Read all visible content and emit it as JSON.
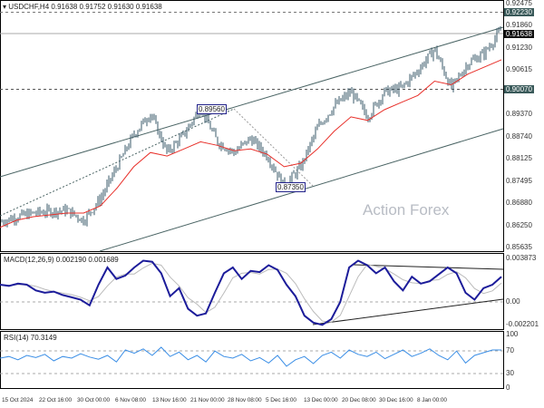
{
  "header": {
    "symbol": "USDCHF,H4",
    "ohlc": "0.91638 0.91752 0.91630 0.91638"
  },
  "price_axis": [
    "0.92475",
    "0.91860",
    "0.91230",
    "0.90615",
    "0.89370",
    "0.88740",
    "0.88125",
    "0.87495",
    "0.86880",
    "0.86250",
    "0.85635"
  ],
  "price_tags": {
    "resistance": "0.92230",
    "current": "0.91638",
    "support": "0.90070"
  },
  "annotations": {
    "high": "0.89560",
    "low": "0.87350",
    "watermark": "Action Forex"
  },
  "macd": {
    "label": "MACD(12,26,9) 0.002190 0.001689",
    "axis": [
      "0.003873",
      "0.00",
      "-0.002201"
    ]
  },
  "rsi": {
    "label": "RSI(14) 70.3149",
    "axis": [
      "100",
      "70",
      "30",
      "0"
    ]
  },
  "time_axis": [
    "15 Oct 2024",
    "22 Oct 16:00",
    "30 Oct 00:00",
    "6 Nov 08:00",
    "13 Nov 16:00",
    "21 Nov 00:00",
    "28 Nov 08:00",
    "5 Dec 16:00",
    "13 Dec 00:00",
    "20 Dec 08:00",
    "30 Dec 16:00",
    "8 Jan 00:00"
  ],
  "chart_data": {
    "type": "line",
    "price_range": [
      0.85635,
      0.92475
    ],
    "price_path": [
      0.8635,
      0.865,
      0.866,
      0.8665,
      0.8668,
      0.864,
      0.87,
      0.879,
      0.888,
      0.894,
      0.883,
      0.888,
      0.8956,
      0.886,
      0.883,
      0.887,
      0.882,
      0.8735,
      0.879,
      0.89,
      0.896,
      0.9,
      0.893,
      0.9,
      0.901,
      0.906,
      0.912,
      0.901,
      0.908,
      0.911,
      0.9175
    ],
    "ma_path": [
      0.862,
      0.864,
      0.865,
      0.8655,
      0.866,
      0.866,
      0.868,
      0.873,
      0.879,
      0.883,
      0.882,
      0.884,
      0.886,
      0.885,
      0.8835,
      0.884,
      0.8825,
      0.879,
      0.88,
      0.884,
      0.889,
      0.893,
      0.892,
      0.895,
      0.897,
      0.899,
      0.903,
      0.902,
      0.905,
      0.907,
      0.909
    ],
    "macd_main": [
      0.0015,
      0.0014,
      0.0016,
      0.0015,
      0.001,
      0.0008,
      0.0009,
      0.0006,
      0.0004,
      0.0002,
      -0.0003,
      0.0015,
      0.003,
      0.002,
      0.0023,
      0.003,
      0.0036,
      0.0035,
      0.0025,
      0.0005,
      0.0012,
      -0.0006,
      -0.0012,
      -0.001,
      0.0008,
      0.0025,
      0.003,
      0.002,
      0.0027,
      0.0026,
      0.0032,
      0.0028,
      0.0015,
      0.0005,
      -0.0012,
      -0.0018,
      -0.002,
      -0.0015,
      0.0,
      0.003,
      0.0036,
      0.0032,
      0.0025,
      0.003,
      0.0018,
      0.001,
      0.0022,
      0.0016,
      0.0018,
      0.0024,
      0.003,
      0.0025,
      0.0008,
      0.0002,
      0.0012,
      0.0015,
      0.0022
    ],
    "rsi_values": [
      55,
      58,
      52,
      60,
      56,
      62,
      50,
      58,
      55,
      63,
      57,
      53,
      60,
      48,
      70,
      64,
      72,
      60,
      75,
      58,
      66,
      52,
      60,
      48,
      68,
      58,
      55,
      62,
      50,
      56,
      46,
      60,
      40,
      52,
      58,
      45,
      60,
      66,
      55,
      70,
      62,
      58,
      66,
      54,
      62,
      70,
      58,
      64,
      72,
      60,
      52,
      68,
      46,
      60,
      65,
      70,
      70
    ]
  }
}
